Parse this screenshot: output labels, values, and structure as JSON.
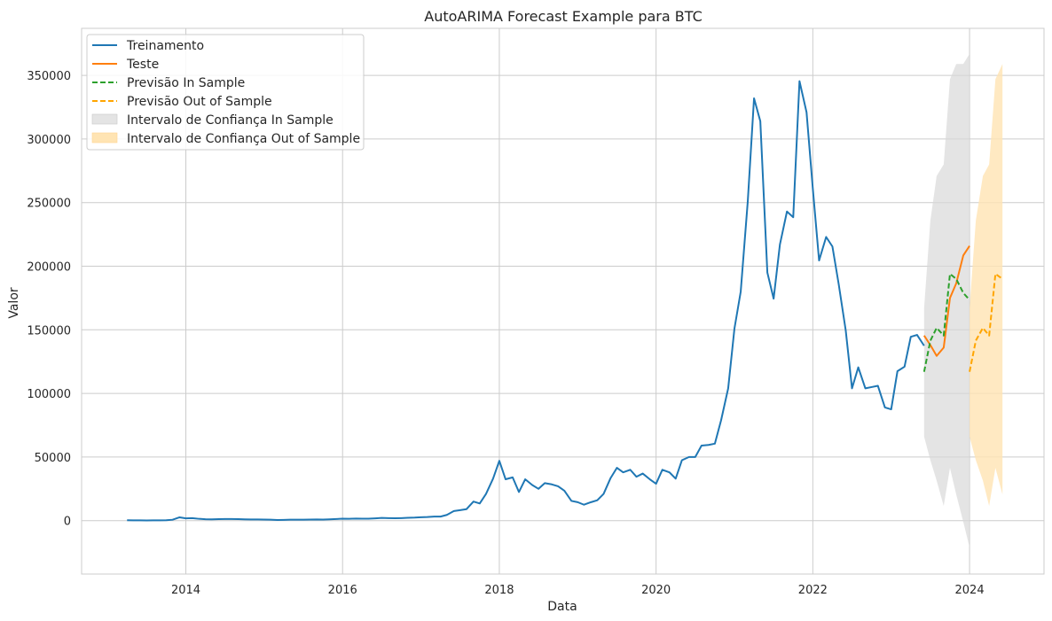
{
  "chart_data": {
    "type": "line",
    "title": "AutoARIMA Forecast Example para BTC",
    "xlabel": "Data",
    "ylabel": "Valor",
    "xlim": [
      2012.67,
      2024.95
    ],
    "ylim": [
      -42000,
      387000
    ],
    "x_ticks": [
      2014,
      2016,
      2018,
      2020,
      2022,
      2024
    ],
    "x_tick_labels": [
      "2014",
      "2016",
      "2018",
      "2020",
      "2022",
      "2024"
    ],
    "y_ticks": [
      0,
      50000,
      100000,
      150000,
      200000,
      250000,
      300000,
      350000
    ],
    "y_tick_labels": [
      "0",
      "50000",
      "100000",
      "150000",
      "200000",
      "250000",
      "300000",
      "350000"
    ],
    "grid": true,
    "legend_position": "top-left",
    "legend": [
      "Treinamento",
      "Teste",
      "Previsão In Sample",
      "Previsão Out of Sample",
      "Intervalo de Confiança In Sample",
      "Intervalo de Confiança Out of Sample"
    ],
    "series": [
      {
        "name": "Treinamento",
        "style": "solid",
        "color": "#1f77b4",
        "points": [
          [
            2013.25,
            300
          ],
          [
            2013.33,
            250
          ],
          [
            2013.42,
            200
          ],
          [
            2013.5,
            150
          ],
          [
            2013.58,
            200
          ],
          [
            2013.67,
            250
          ],
          [
            2013.75,
            300
          ],
          [
            2013.83,
            700
          ],
          [
            2013.92,
            2600
          ],
          [
            2014.0,
            1800
          ],
          [
            2014.08,
            2000
          ],
          [
            2014.17,
            1400
          ],
          [
            2014.25,
            1100
          ],
          [
            2014.33,
            1000
          ],
          [
            2014.42,
            1200
          ],
          [
            2014.5,
            1300
          ],
          [
            2014.58,
            1300
          ],
          [
            2014.67,
            1200
          ],
          [
            2014.75,
            1000
          ],
          [
            2014.83,
            900
          ],
          [
            2014.92,
            900
          ],
          [
            2015.0,
            800
          ],
          [
            2015.08,
            700
          ],
          [
            2015.17,
            500
          ],
          [
            2015.25,
            600
          ],
          [
            2015.33,
            700
          ],
          [
            2015.42,
            700
          ],
          [
            2015.5,
            700
          ],
          [
            2015.58,
            800
          ],
          [
            2015.67,
            900
          ],
          [
            2015.75,
            800
          ],
          [
            2015.83,
            1000
          ],
          [
            2015.92,
            1300
          ],
          [
            2016.0,
            1500
          ],
          [
            2016.08,
            1400
          ],
          [
            2016.17,
            1600
          ],
          [
            2016.25,
            1500
          ],
          [
            2016.33,
            1500
          ],
          [
            2016.42,
            1800
          ],
          [
            2016.5,
            2100
          ],
          [
            2016.58,
            2000
          ],
          [
            2016.67,
            1900
          ],
          [
            2016.75,
            2000
          ],
          [
            2016.83,
            2200
          ],
          [
            2016.92,
            2400
          ],
          [
            2017.0,
            2700
          ],
          [
            2017.08,
            2800
          ],
          [
            2017.17,
            3200
          ],
          [
            2017.25,
            3200
          ],
          [
            2017.33,
            4500
          ],
          [
            2017.42,
            7500
          ],
          [
            2017.5,
            8200
          ],
          [
            2017.58,
            9000
          ],
          [
            2017.67,
            15000
          ],
          [
            2017.75,
            13500
          ],
          [
            2017.83,
            21000
          ],
          [
            2017.92,
            33000
          ],
          [
            2018.0,
            47000
          ],
          [
            2018.08,
            32500
          ],
          [
            2018.17,
            34000
          ],
          [
            2018.25,
            22500
          ],
          [
            2018.33,
            32500
          ],
          [
            2018.42,
            28000
          ],
          [
            2018.5,
            25000
          ],
          [
            2018.58,
            29500
          ],
          [
            2018.67,
            28500
          ],
          [
            2018.75,
            27000
          ],
          [
            2018.83,
            23500
          ],
          [
            2018.92,
            15500
          ],
          [
            2019.0,
            14500
          ],
          [
            2019.08,
            12500
          ],
          [
            2019.17,
            14500
          ],
          [
            2019.25,
            16000
          ],
          [
            2019.33,
            21000
          ],
          [
            2019.42,
            33500
          ],
          [
            2019.5,
            41500
          ],
          [
            2019.58,
            38000
          ],
          [
            2019.67,
            40000
          ],
          [
            2019.75,
            34500
          ],
          [
            2019.83,
            37000
          ],
          [
            2019.92,
            32500
          ],
          [
            2020.0,
            29000
          ],
          [
            2020.08,
            40000
          ],
          [
            2020.17,
            38000
          ],
          [
            2020.25,
            33000
          ],
          [
            2020.33,
            47500
          ],
          [
            2020.42,
            50000
          ],
          [
            2020.5,
            50000
          ],
          [
            2020.58,
            59000
          ],
          [
            2020.67,
            59500
          ],
          [
            2020.75,
            60500
          ],
          [
            2020.83,
            79000
          ],
          [
            2020.92,
            104000
          ],
          [
            2021.0,
            151000
          ],
          [
            2021.08,
            180000
          ],
          [
            2021.17,
            251000
          ],
          [
            2021.25,
            332000
          ],
          [
            2021.33,
            314000
          ],
          [
            2021.42,
            195000
          ],
          [
            2021.5,
            174500
          ],
          [
            2021.58,
            217000
          ],
          [
            2021.67,
            243000
          ],
          [
            2021.75,
            238500
          ],
          [
            2021.83,
            345500
          ],
          [
            2021.92,
            321000
          ],
          [
            2022.0,
            261000
          ],
          [
            2022.08,
            204500
          ],
          [
            2022.17,
            223000
          ],
          [
            2022.25,
            215500
          ],
          [
            2022.33,
            186000
          ],
          [
            2022.42,
            149500
          ],
          [
            2022.5,
            104000
          ],
          [
            2022.58,
            120500
          ],
          [
            2022.67,
            104000
          ],
          [
            2022.75,
            105000
          ],
          [
            2022.83,
            106000
          ],
          [
            2022.92,
            89000
          ],
          [
            2023.0,
            87500
          ],
          [
            2023.08,
            117500
          ],
          [
            2023.17,
            121000
          ],
          [
            2023.25,
            144500
          ],
          [
            2023.33,
            146000
          ],
          [
            2023.42,
            137500
          ]
        ]
      },
      {
        "name": "Teste",
        "style": "solid",
        "color": "#ff7f0e",
        "points": [
          [
            2023.42,
            145500
          ],
          [
            2023.5,
            138000
          ],
          [
            2023.58,
            129500
          ],
          [
            2023.67,
            136000
          ],
          [
            2023.75,
            175000
          ],
          [
            2023.83,
            186500
          ],
          [
            2023.92,
            208500
          ],
          [
            2024.0,
            216000
          ]
        ]
      },
      {
        "name": "Previsão In Sample",
        "style": "dashed",
        "color": "#2ca02c",
        "points": [
          [
            2023.42,
            117000
          ],
          [
            2023.5,
            141500
          ],
          [
            2023.58,
            151500
          ],
          [
            2023.67,
            145500
          ],
          [
            2023.75,
            194000
          ],
          [
            2023.83,
            190000
          ],
          [
            2023.92,
            179000
          ],
          [
            2024.0,
            173500
          ]
        ]
      },
      {
        "name": "Previsão Out of Sample",
        "style": "dashed",
        "color": "#ffa500",
        "points": [
          [
            2024.0,
            117000
          ],
          [
            2024.08,
            141500
          ],
          [
            2024.17,
            151500
          ],
          [
            2024.25,
            145500
          ],
          [
            2024.33,
            194000
          ],
          [
            2024.42,
            190000
          ]
        ]
      }
    ],
    "bands": [
      {
        "name": "Intervalo de Confiança In Sample",
        "color": "#d9d9d9",
        "x": [
          2023.42,
          2023.5,
          2023.58,
          2023.67,
          2023.75,
          2023.83,
          2023.92,
          2024.0
        ],
        "upper": [
          167000,
          236000,
          271000,
          280000,
          347000,
          359000,
          359000,
          367000
        ],
        "lower": [
          66000,
          47500,
          31500,
          11500,
          41500,
          20500,
          -1000,
          -21000
        ]
      },
      {
        "name": "Intervalo de Confiança Out of Sample",
        "color": "#ffe4b3",
        "x": [
          2024.0,
          2024.08,
          2024.17,
          2024.25,
          2024.33,
          2024.42
        ],
        "upper": [
          167000,
          236000,
          271000,
          280000,
          347000,
          359000
        ],
        "lower": [
          66000,
          47500,
          31500,
          11500,
          41500,
          20500
        ]
      }
    ]
  }
}
